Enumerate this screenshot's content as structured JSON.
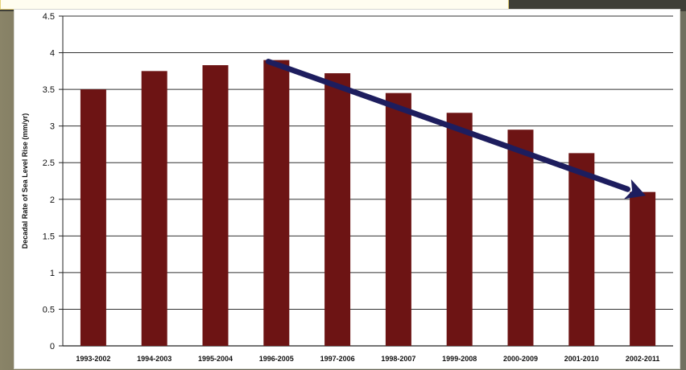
{
  "chart_data": {
    "type": "bar",
    "categories": [
      "1993-2002",
      "1994-2003",
      "1995-2004",
      "1996-2005",
      "1997-2006",
      "1998-2007",
      "1999-2008",
      "2000-2009",
      "2001-2010",
      "2002-2011"
    ],
    "values": [
      3.5,
      3.75,
      3.83,
      3.9,
      3.72,
      3.45,
      3.18,
      2.95,
      2.63,
      2.1
    ],
    "title": "",
    "xlabel": "",
    "ylabel": "Decadal Rate of Sea Level Rise (mm/yr)",
    "ylim": [
      0,
      4.5
    ],
    "yticks": [
      "0",
      "0.5",
      "1",
      "1.5",
      "2",
      "2.5",
      "3",
      "3.5",
      "4",
      "4.5"
    ],
    "grid": true,
    "bar_color": "#6d1414",
    "trend_arrow": {
      "from_category": "1996-2005",
      "from_value": 3.88,
      "to_category": "2002-2011",
      "to_value": 2.05,
      "color": "#1d1d5e"
    }
  }
}
